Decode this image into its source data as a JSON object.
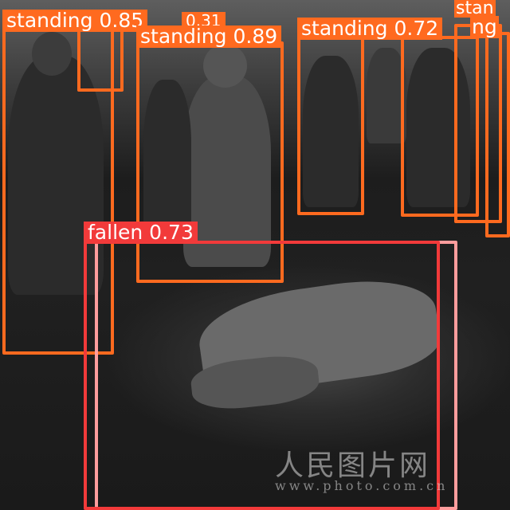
{
  "image": {
    "description_colors": {
      "standing_box": "#ff6a1f",
      "fallen_box": "#f23a3a",
      "fallen_box2": "#ff9d9d"
    }
  },
  "detections": [
    {
      "label": "standing 0.85",
      "kind": "standing"
    },
    {
      "label": "0.31",
      "kind": "standing"
    },
    {
      "label": "standing 0.89",
      "kind": "standing"
    },
    {
      "label": "standing 0.72",
      "kind": "standing"
    },
    {
      "label": "stan",
      "kind": "standing"
    },
    {
      "label": "ng",
      "kind": "standing"
    },
    {
      "label": "fallen 0.73",
      "kind": "fallen"
    }
  ],
  "watermark": {
    "logo_text": "人民图片网",
    "url_text": "www.photo.com.cn"
  }
}
